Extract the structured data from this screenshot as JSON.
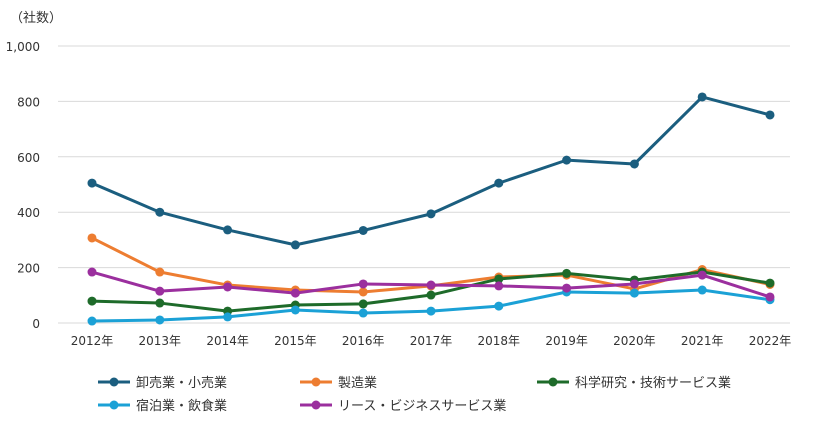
{
  "chart_data": {
    "type": "line",
    "title": "",
    "ylabel": "（社数）",
    "xlabel": "",
    "ylim": [
      0,
      1000
    ],
    "yticks": [
      "0",
      "200",
      "400",
      "600",
      "800",
      "1,000"
    ],
    "ytick_values": [
      0,
      200,
      400,
      600,
      800,
      1000
    ],
    "grid": true,
    "legend_position": "bottom",
    "categories": [
      "2012年",
      "2013年",
      "2014年",
      "2015年",
      "2016年",
      "2017年",
      "2018年",
      "2019年",
      "2020年",
      "2021年",
      "2022年"
    ],
    "series": [
      {
        "name": "卸売業・小売業",
        "color": "#1b5e7f",
        "values": [
          505,
          400,
          336,
          282,
          334,
          394,
          505,
          588,
          574,
          816,
          751
        ]
      },
      {
        "name": "製造業",
        "color": "#ed7d31",
        "values": [
          307,
          184,
          137,
          119,
          112,
          134,
          166,
          173,
          123,
          193,
          139
        ]
      },
      {
        "name": "科学研究・技術サービス業",
        "color": "#1e6b2a",
        "values": [
          79,
          72,
          43,
          65,
          69,
          101,
          159,
          179,
          155,
          184,
          144
        ]
      },
      {
        "name": "宿泊業・飲食業",
        "color": "#1ba1d6",
        "values": [
          7,
          11,
          22,
          47,
          36,
          43,
          61,
          112,
          108,
          119,
          84
        ]
      },
      {
        "name": "リース・ビジネスサービス業",
        "color": "#9b2f9e",
        "values": [
          184,
          115,
          130,
          108,
          141,
          137,
          134,
          126,
          141,
          173,
          94
        ]
      }
    ]
  }
}
